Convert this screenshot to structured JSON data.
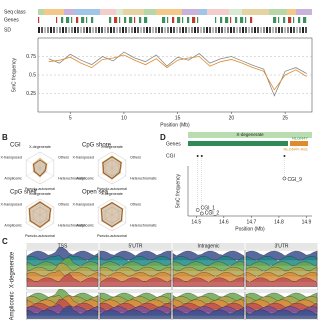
{
  "panel_a": {
    "tracks": [
      "Seq class",
      "Genes",
      "SD"
    ],
    "y_label": "5mC frequency",
    "x_label": "Position (Mb)",
    "xlim": [
      2,
      27.5
    ],
    "xticks": [
      5,
      10,
      15,
      20,
      25
    ],
    "ylim": [
      0,
      1
    ],
    "yticks": [
      0.25,
      0.5,
      0.75
    ],
    "series": [
      {
        "color": "#8a8a8a",
        "x": [
          3,
          4,
          5,
          6,
          7,
          8,
          9,
          10,
          11,
          12,
          13,
          14,
          15,
          16,
          17,
          18,
          19,
          20,
          21,
          22,
          23,
          24,
          25,
          26,
          27
        ],
        "values": [
          0.72,
          0.66,
          0.78,
          0.7,
          0.64,
          0.75,
          0.69,
          0.81,
          0.73,
          0.68,
          0.77,
          0.62,
          0.74,
          0.7,
          0.79,
          0.66,
          0.72,
          0.75,
          0.69,
          0.63,
          0.58,
          0.22,
          0.55,
          0.6,
          0.52
        ]
      },
      {
        "color": "#e08a2b",
        "x": [
          3,
          4,
          5,
          6,
          7,
          8,
          9,
          10,
          11,
          12,
          13,
          14,
          15,
          16,
          17,
          18,
          19,
          20,
          21,
          22,
          23,
          24,
          25,
          26,
          27
        ],
        "values": [
          0.68,
          0.7,
          0.74,
          0.66,
          0.6,
          0.71,
          0.73,
          0.77,
          0.7,
          0.64,
          0.72,
          0.6,
          0.7,
          0.73,
          0.75,
          0.62,
          0.68,
          0.71,
          0.66,
          0.6,
          0.55,
          0.3,
          0.5,
          0.57,
          0.48
        ]
      }
    ]
  },
  "panel_b": {
    "letter": "B",
    "axes": [
      "X-degenerate",
      "Others",
      "Heterochromatic",
      "Pseudo-autosomal",
      "Ampliconic",
      "X-transposed"
    ],
    "rlim": [
      0,
      1
    ],
    "radars": [
      {
        "title": "CGI",
        "series": [
          {
            "color": "#e08a2b",
            "values": [
              0.6,
              0.5,
              0.4,
              0.55,
              0.45,
              0.5
            ]
          },
          {
            "color": "#6b4f33",
            "values": [
              0.5,
              0.45,
              0.35,
              0.5,
              0.4,
              0.45
            ]
          }
        ]
      },
      {
        "title": "CpG shore",
        "series": [
          {
            "color": "#e08a2b",
            "values": [
              0.75,
              0.7,
              0.6,
              0.7,
              0.65,
              0.7
            ]
          },
          {
            "color": "#6b4f33",
            "values": [
              0.7,
              0.65,
              0.55,
              0.65,
              0.6,
              0.65
            ]
          }
        ]
      },
      {
        "title": "CpG shelf",
        "series": [
          {
            "color": "#e08a2b",
            "values": [
              0.85,
              0.8,
              0.7,
              0.8,
              0.75,
              0.8
            ]
          },
          {
            "color": "#6b4f33",
            "values": [
              0.8,
              0.75,
              0.65,
              0.75,
              0.7,
              0.75
            ]
          }
        ]
      },
      {
        "title": "Open sea",
        "series": [
          {
            "color": "#e08a2b",
            "values": [
              0.8,
              0.78,
              0.72,
              0.76,
              0.74,
              0.8
            ]
          },
          {
            "color": "#6b4f33",
            "values": [
              0.76,
              0.74,
              0.68,
              0.72,
              0.7,
              0.75
            ]
          }
        ]
      }
    ]
  },
  "panel_d": {
    "letter": "D",
    "region": "X-degenerate",
    "track_labels": [
      "Genes",
      "CGI"
    ],
    "genes": [
      "NLGN4Y",
      "NLGN4Y-AS1"
    ],
    "y_label": "5mC frequency",
    "x_label": "Position (Mb)",
    "xlim": [
      14.47,
      14.92
    ],
    "xticks": [
      14.5,
      14.6,
      14.7,
      14.8,
      14.9
    ],
    "ylim": [
      0,
      1
    ],
    "points": {
      "labels": [
        "CGI_1",
        "CGI_2",
        "CGI_9"
      ],
      "x": [
        14.505,
        14.52,
        14.82
      ],
      "values": [
        0.12,
        0.05,
        0.75
      ]
    }
  },
  "panel_c": {
    "letter": "C",
    "columns": [
      "TSS",
      "5'UTR",
      "Intragenic",
      "3'UTR"
    ],
    "rows": [
      "X-degenerate",
      "Ampliconic"
    ]
  }
}
